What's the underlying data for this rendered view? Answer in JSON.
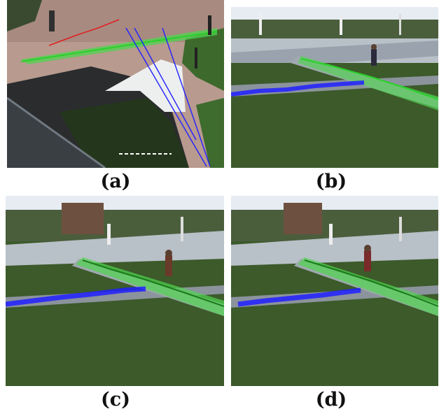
{
  "panels": [
    {
      "id": "a",
      "label": "(a)"
    },
    {
      "id": "b",
      "label": "(b)"
    },
    {
      "id": "c",
      "label": "(c)"
    },
    {
      "id": "d",
      "label": "(d)"
    }
  ],
  "colors": {
    "trajectory_green": "#3ef03e",
    "trajectory_blue": "#2020ff",
    "trajectory_red": "#e02020",
    "grass": "#3c5a2a",
    "pavement": "#9aa3ad",
    "sky": "#e6ecf2"
  }
}
